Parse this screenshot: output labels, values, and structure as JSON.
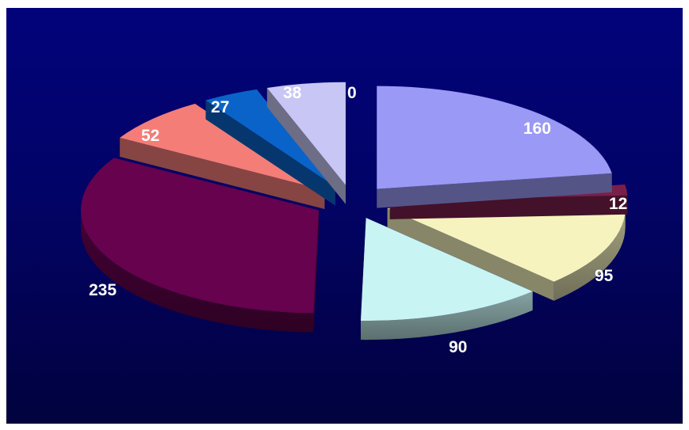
{
  "chart_data": {
    "type": "pie",
    "style": "3d-exploded",
    "values": [
      160,
      12,
      95,
      90,
      235,
      52,
      27,
      38,
      0
    ],
    "labels": [
      "160",
      "12",
      "95",
      "90",
      "235",
      "52",
      "27",
      "38",
      "0"
    ],
    "colors": [
      "#9a99f6",
      "#7a1f4a",
      "#f6f3bf",
      "#c8f4f4",
      "#66024e",
      "#f47d78",
      "#0a63c8",
      "#c7c6f4",
      "#c7c6f4"
    ],
    "background": [
      "#02037a",
      "#01023e"
    ],
    "legend": "none",
    "title": ""
  }
}
